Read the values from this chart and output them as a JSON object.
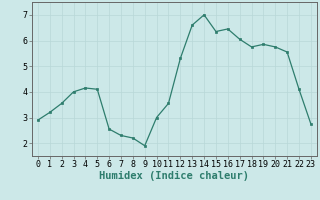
{
  "x": [
    0,
    1,
    2,
    3,
    4,
    5,
    6,
    7,
    8,
    9,
    10,
    11,
    12,
    13,
    14,
    15,
    16,
    17,
    18,
    19,
    20,
    21,
    22,
    23
  ],
  "y": [
    2.9,
    3.2,
    3.55,
    4.0,
    4.15,
    4.1,
    2.55,
    2.3,
    2.2,
    1.9,
    3.0,
    3.55,
    5.3,
    6.6,
    7.0,
    6.35,
    6.45,
    6.05,
    5.75,
    5.85,
    5.75,
    5.55,
    4.1,
    2.75
  ],
  "xlabel": "Humidex (Indice chaleur)",
  "xlim": [
    -0.5,
    23.5
  ],
  "ylim": [
    1.5,
    7.5
  ],
  "yticks": [
    2,
    3,
    4,
    5,
    6,
    7
  ],
  "xticks": [
    0,
    1,
    2,
    3,
    4,
    5,
    6,
    7,
    8,
    9,
    10,
    11,
    12,
    13,
    14,
    15,
    16,
    17,
    18,
    19,
    20,
    21,
    22,
    23
  ],
  "line_color": "#2e7d6d",
  "bg_color": "#cce8e8",
  "grid_color": "#b8d8d8",
  "tick_label_fontsize": 6.0,
  "xlabel_fontsize": 7.5
}
